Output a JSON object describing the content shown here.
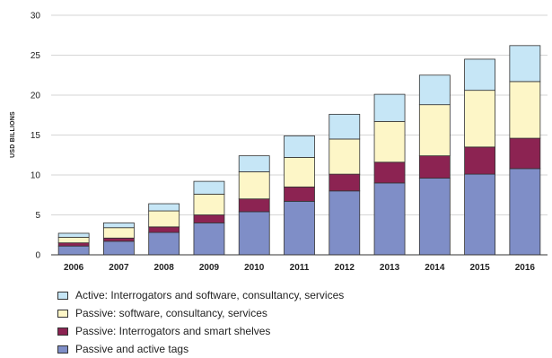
{
  "chart_data": {
    "type": "bar",
    "stacked": true,
    "categories": [
      "2006",
      "2007",
      "2008",
      "2009",
      "2010",
      "2011",
      "2012",
      "2013",
      "2014",
      "2015",
      "2016"
    ],
    "ylabel": "USD BILLIONS",
    "ylim": [
      0,
      30
    ],
    "yticks": [
      0,
      5,
      10,
      15,
      20,
      25,
      30
    ],
    "grid": true,
    "legend_position": "bottom",
    "series": [
      {
        "name": "Passive and active tags",
        "color": "#7f8ec7",
        "values": [
          1.1,
          1.7,
          2.8,
          4.0,
          5.4,
          6.7,
          8.0,
          9.0,
          9.6,
          10.1,
          10.8
        ]
      },
      {
        "name": "Passive: Interrogators and smart shelves",
        "color": "#8c2352",
        "values": [
          0.4,
          0.4,
          0.7,
          1.0,
          1.6,
          1.8,
          2.1,
          2.6,
          2.8,
          3.4,
          3.8
        ]
      },
      {
        "name": "Passive: software, consultancy, services",
        "color": "#fdf6c7",
        "values": [
          0.7,
          1.3,
          2.0,
          2.6,
          3.4,
          3.7,
          4.4,
          5.1,
          6.4,
          7.1,
          7.1
        ]
      },
      {
        "name": "Active: Interrogators and software, consultancy, services",
        "color": "#c6e6f6",
        "values": [
          0.5,
          0.6,
          0.9,
          1.6,
          2.0,
          2.7,
          3.1,
          3.4,
          3.7,
          3.9,
          4.5
        ]
      }
    ]
  }
}
